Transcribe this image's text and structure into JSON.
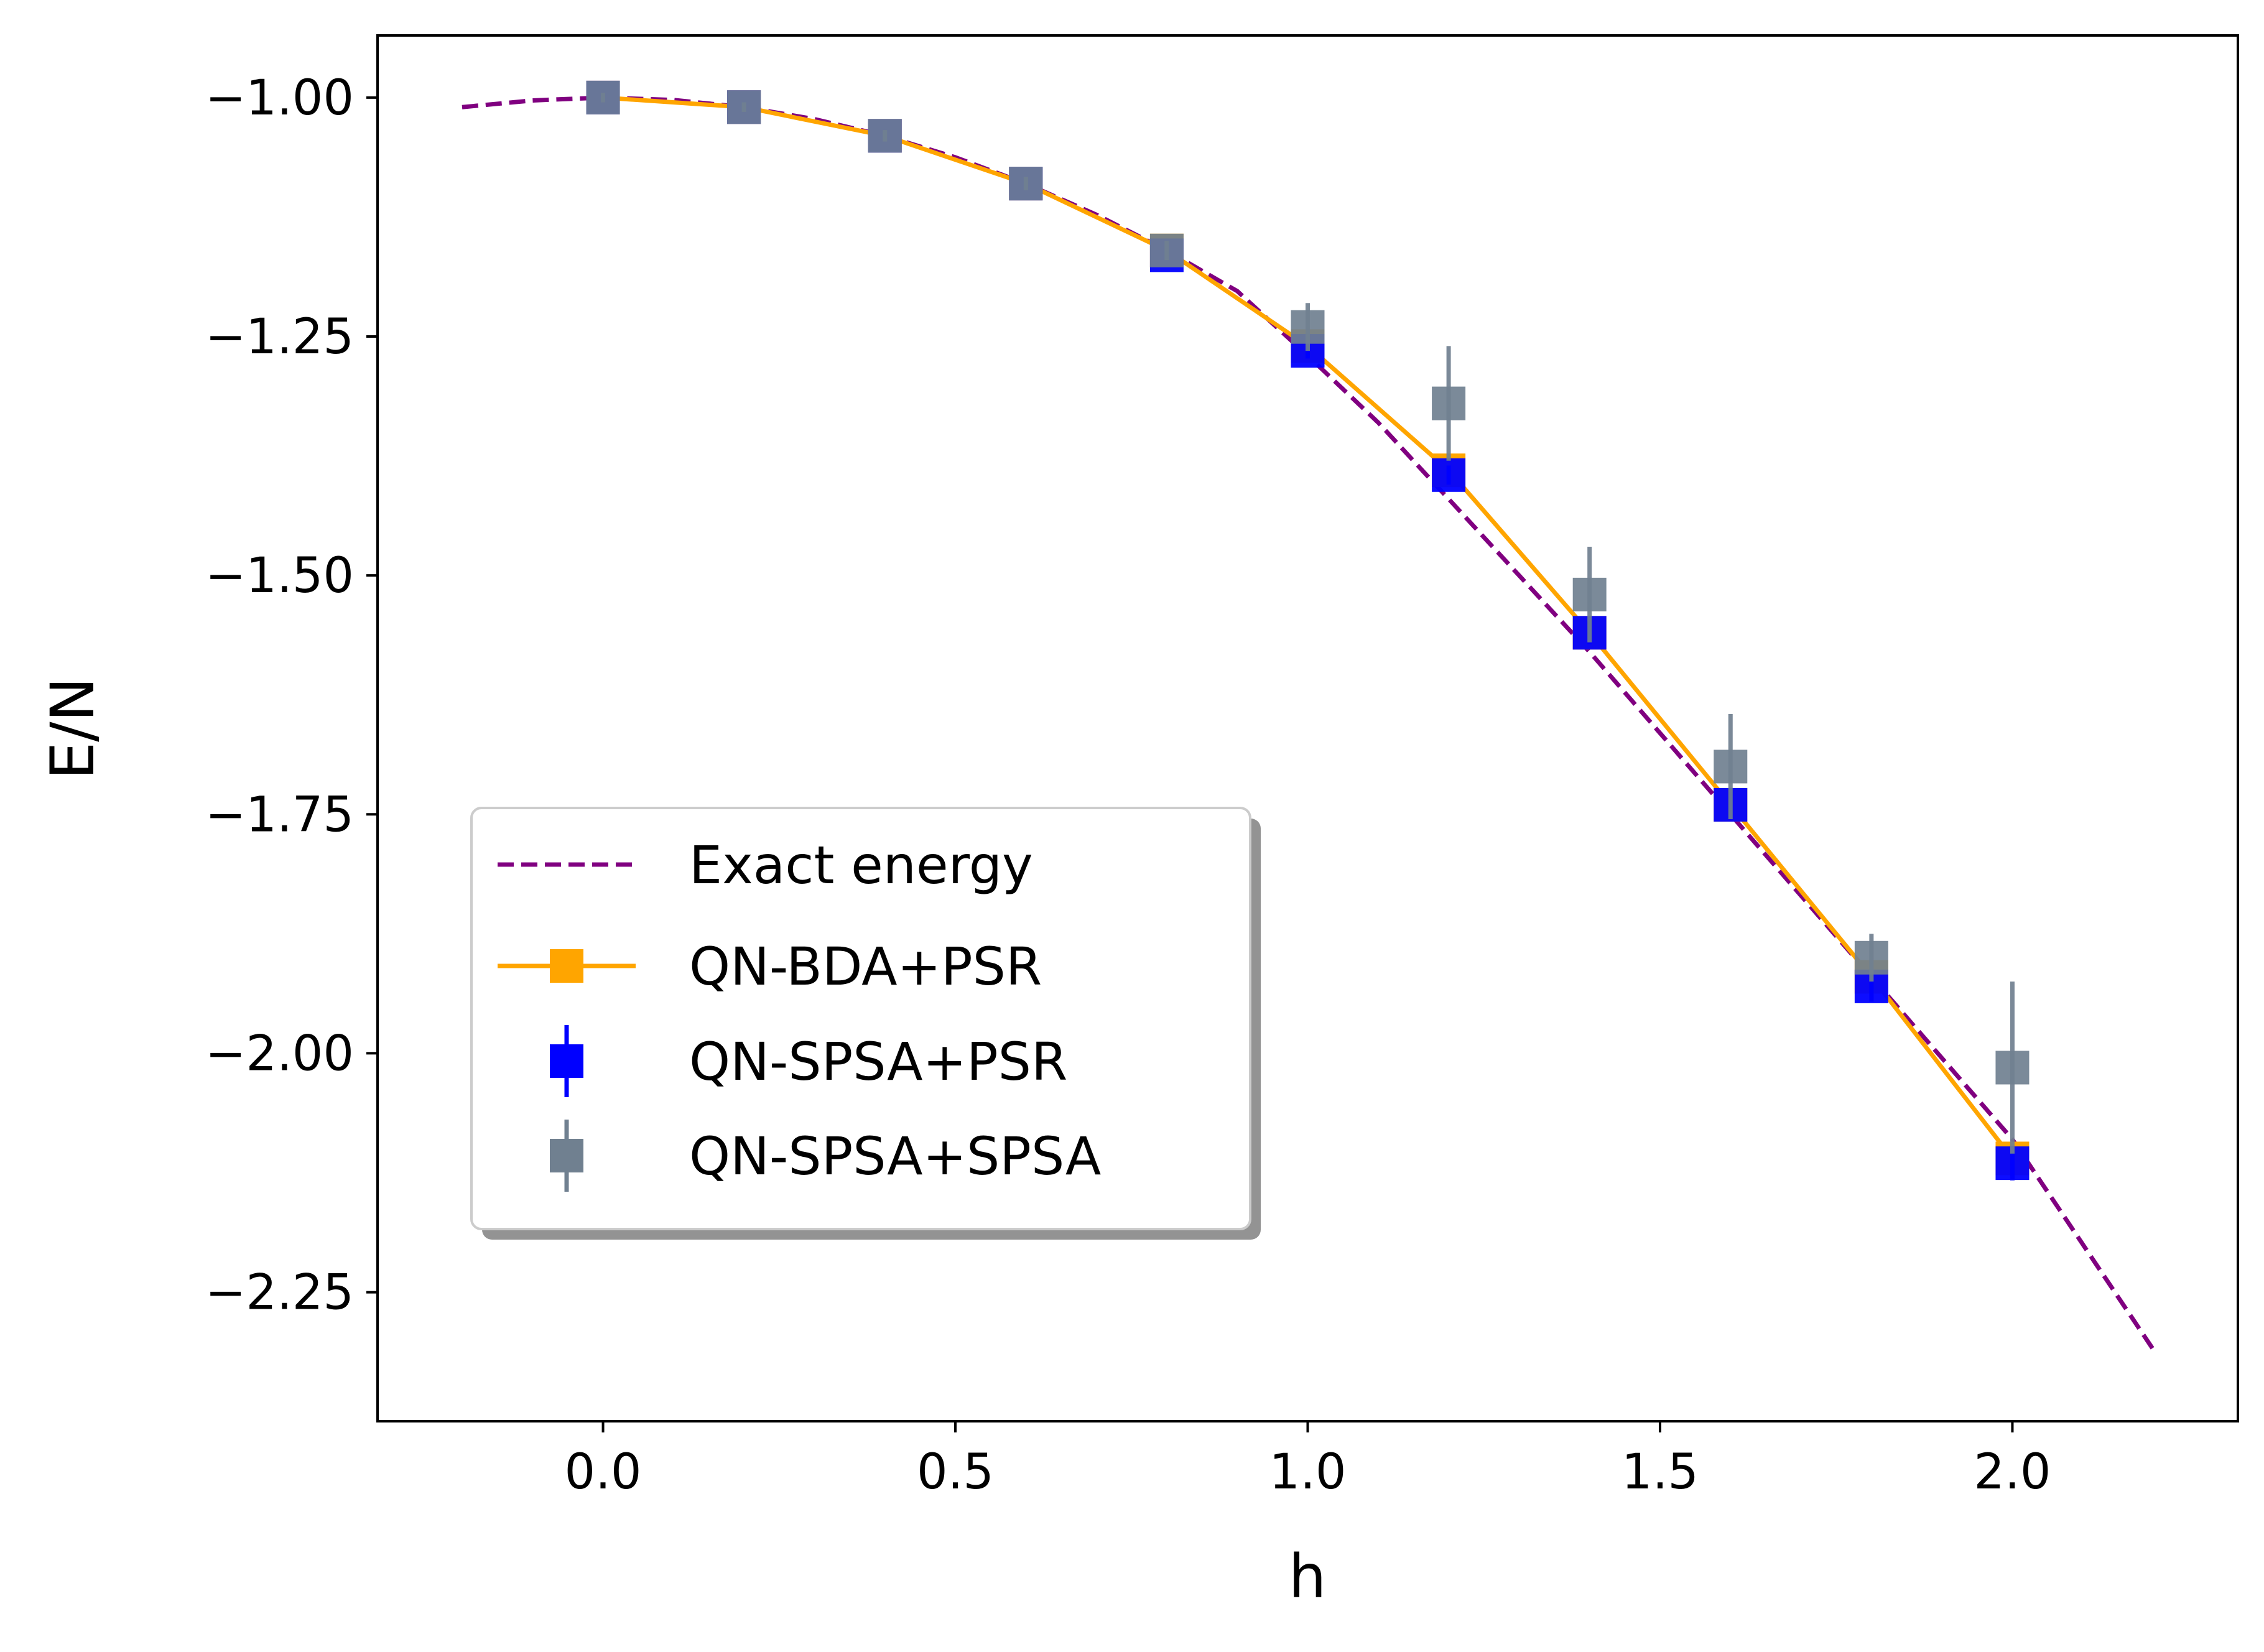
{
  "chart_data": {
    "type": "line",
    "title": "",
    "xlabel": "h",
    "ylabel": "E/N",
    "xlim": [
      -0.32,
      2.32
    ],
    "ylim": [
      -2.385,
      -0.935
    ],
    "xticks": [
      0.0,
      0.5,
      1.0,
      1.5,
      2.0
    ],
    "xtick_labels": [
      "0.0",
      "0.5",
      "1.0",
      "1.5",
      "2.0"
    ],
    "yticks": [
      -1.0,
      -1.25,
      -1.5,
      -1.75,
      -2.0,
      -2.25
    ],
    "ytick_labels": [
      "−1.00",
      "−1.25",
      "−1.50",
      "−1.75",
      "−2.00",
      "−2.25"
    ],
    "grid": false,
    "legend_position": "lower-left",
    "series": [
      {
        "name": "Exact energy",
        "style": "dashed-line",
        "color": "#800080",
        "x": [
          -0.2,
          -0.1,
          0.0,
          0.1,
          0.2,
          0.3,
          0.4,
          0.5,
          0.6,
          0.7,
          0.8,
          0.9,
          1.0,
          1.1,
          1.2,
          1.3,
          1.4,
          1.5,
          1.6,
          1.7,
          1.8,
          1.9,
          2.0,
          2.1,
          2.2
        ],
        "y": [
          -1.01,
          -1.003,
          -1.0,
          -1.0025,
          -1.01,
          -1.0225,
          -1.04,
          -1.0625,
          -1.09,
          -1.1225,
          -1.16,
          -1.2025,
          -1.27,
          -1.34,
          -1.42,
          -1.5,
          -1.58,
          -1.665,
          -1.75,
          -1.835,
          -1.92,
          -2.005,
          -2.09,
          -2.2,
          -2.31
        ]
      },
      {
        "name": "QN-BDA+PSR",
        "style": "line-square",
        "color": "#ffa500",
        "x": [
          0.0,
          0.2,
          0.4,
          0.6,
          0.8,
          1.0,
          1.2,
          1.4,
          1.6,
          1.8,
          2.0
        ],
        "y": [
          -1.0,
          -1.01,
          -1.04,
          -1.09,
          -1.16,
          -1.26,
          -1.39,
          -1.56,
          -1.74,
          -1.92,
          -2.11
        ]
      },
      {
        "name": "QN-SPSA+PSR",
        "style": "errorbar-square",
        "color": "#0000ff",
        "x": [
          0.0,
          0.2,
          0.4,
          0.6,
          0.8,
          1.0,
          1.2,
          1.4,
          1.6,
          1.8,
          2.0
        ],
        "y": [
          -1.0,
          -1.01,
          -1.04,
          -1.09,
          -1.165,
          -1.265,
          -1.395,
          -1.56,
          -1.74,
          -1.93,
          -2.115
        ],
        "yerr": [
          0.002,
          0.002,
          0.003,
          0.004,
          0.005,
          0.008,
          0.01,
          0.012,
          0.014,
          0.016,
          0.018
        ]
      },
      {
        "name": "QN-SPSA+SPSA",
        "style": "errorbar-square",
        "color": "#708090",
        "x": [
          0.0,
          0.2,
          0.4,
          0.6,
          0.8,
          1.0,
          1.2,
          1.4,
          1.6,
          1.8,
          2.0
        ],
        "y": [
          -1.0,
          -1.01,
          -1.04,
          -1.09,
          -1.16,
          -1.24,
          -1.32,
          -1.52,
          -1.7,
          -1.9,
          -2.015
        ],
        "yerr": [
          0.005,
          0.005,
          0.006,
          0.007,
          0.01,
          0.025,
          0.06,
          0.05,
          0.055,
          0.025,
          0.09
        ]
      }
    ]
  }
}
